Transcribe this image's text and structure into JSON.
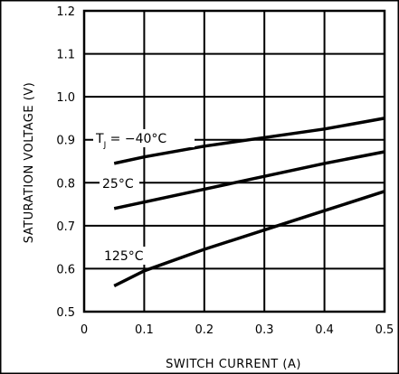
{
  "chart_data": {
    "type": "line",
    "xlabel": "SWITCH CURRENT (A)",
    "ylabel": "SATURATION VOLTAGE (V)",
    "xlim": [
      0,
      0.5
    ],
    "ylim": [
      0.5,
      1.2
    ],
    "xticks": [
      0,
      0.1,
      0.2,
      0.3,
      0.4,
      0.5
    ],
    "xtick_labels": [
      "0",
      "0.1",
      "0.2",
      "0.3",
      "0.4",
      "0.5"
    ],
    "yticks": [
      0.5,
      0.6,
      0.7,
      0.8,
      0.9,
      1.0,
      1.1,
      1.2
    ],
    "ytick_labels": [
      "0.5",
      "0.6",
      "0.7",
      "0.8",
      "0.9",
      "1.0",
      "1.1",
      "1.2"
    ],
    "grid": true,
    "series": [
      {
        "label_main": "T",
        "label_sub": "J",
        "label_rest": " = −40°C",
        "x": [
          0.05,
          0.1,
          0.2,
          0.3,
          0.4,
          0.5
        ],
        "y": [
          0.845,
          0.86,
          0.885,
          0.905,
          0.925,
          0.95
        ]
      },
      {
        "label_main": "25°C",
        "x": [
          0.05,
          0.1,
          0.2,
          0.3,
          0.4,
          0.5
        ],
        "y": [
          0.74,
          0.755,
          0.785,
          0.815,
          0.845,
          0.872
        ]
      },
      {
        "label_main": "125°C",
        "x": [
          0.05,
          0.1,
          0.2,
          0.3,
          0.4,
          0.5
        ],
        "y": [
          0.56,
          0.595,
          0.645,
          0.69,
          0.735,
          0.78
        ]
      }
    ]
  }
}
